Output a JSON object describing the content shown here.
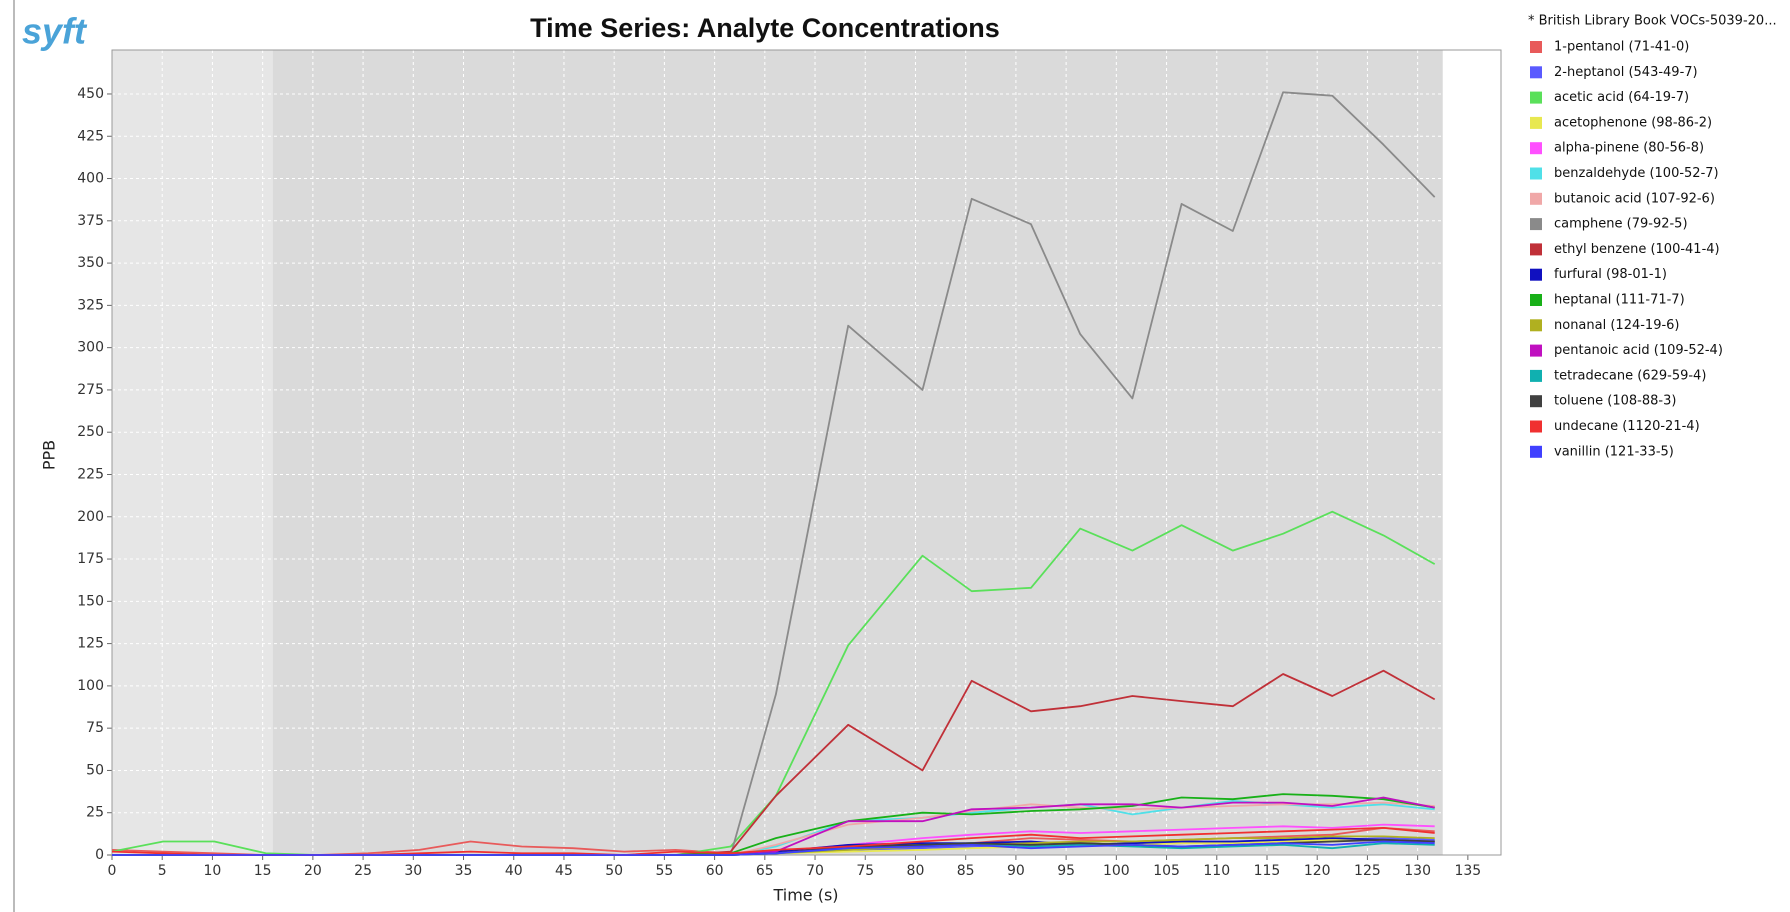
{
  "brand": "syft",
  "chart_data": {
    "type": "line",
    "title": "Time Series: Analyte Concentrations",
    "xlabel": "Time (s)",
    "ylabel": "PPB",
    "legend_title": "* British Library Book VOCs-5039-20...",
    "legend_position": "right",
    "grid": true,
    "xlim": [
      0,
      138.3
    ],
    "ylim": [
      0,
      476
    ],
    "xticks": [
      0,
      5,
      10,
      15,
      20,
      25,
      30,
      35,
      40,
      45,
      50,
      55,
      60,
      65,
      70,
      75,
      80,
      85,
      90,
      95,
      100,
      105,
      110,
      115,
      120,
      125,
      130,
      135
    ],
    "yticks": [
      0,
      25,
      50,
      75,
      100,
      125,
      150,
      175,
      200,
      225,
      250,
      275,
      300,
      325,
      350,
      375,
      400,
      425,
      450
    ],
    "shaded_xranges": [
      {
        "from": 0,
        "to": 16,
        "color": "#e6e6e6"
      },
      {
        "from": 16,
        "to": 132.5,
        "color": "#dadada"
      }
    ],
    "x": [
      0,
      5.1,
      10.2,
      15.3,
      20.4,
      25.5,
      30.6,
      35.7,
      40.8,
      45.9,
      51,
      56.1,
      61.6,
      66.1,
      73.3,
      80.7,
      85.6,
      91.5,
      96.4,
      101.6,
      106.5,
      111.6,
      116.6,
      121.5,
      126.6,
      131.7
    ],
    "series": [
      {
        "name": "1-pentanol (71-41-0)",
        "color": "#e85a5a",
        "values": [
          3,
          2,
          1,
          0,
          0,
          1,
          3,
          8,
          5,
          4,
          2,
          3,
          1,
          2,
          3,
          5,
          7,
          10,
          9,
          8,
          9,
          10,
          11,
          12,
          16,
          14
        ]
      },
      {
        "name": "2-heptanol (543-49-7)",
        "color": "#5a5aff",
        "values": [
          0,
          0,
          0,
          0,
          0,
          0,
          0,
          0,
          0,
          0,
          0,
          0,
          0,
          1,
          3,
          4,
          5,
          6,
          7,
          6,
          7,
          8,
          8,
          9,
          10,
          9
        ]
      },
      {
        "name": "acetic acid (64-19-7)",
        "color": "#5ae05a",
        "values": [
          2,
          8,
          8,
          1,
          0,
          0,
          0,
          0,
          0,
          0,
          0,
          0,
          5,
          35,
          124,
          177,
          156,
          158,
          193,
          180,
          195,
          180,
          190,
          203,
          189,
          172
        ]
      },
      {
        "name": "acetophenone (98-86-2)",
        "color": "#e8e850",
        "values": [
          0,
          0,
          0,
          0,
          0,
          0,
          0,
          0,
          0,
          0,
          0,
          0,
          0,
          1,
          2,
          3,
          4,
          5,
          6,
          6,
          7,
          7,
          8,
          9,
          9,
          8
        ]
      },
      {
        "name": "alpha-pinene (80-56-8)",
        "color": "#ff50ff",
        "values": [
          0,
          0,
          0,
          0,
          0,
          0,
          0,
          0,
          0,
          0,
          0,
          0,
          0,
          2,
          6,
          10,
          12,
          14,
          13,
          14,
          15,
          16,
          17,
          16,
          18,
          17
        ]
      },
      {
        "name": "benzaldehyde (100-52-7)",
        "color": "#50e0e8",
        "values": [
          0,
          0,
          0,
          0,
          0,
          0,
          0,
          0,
          0,
          0,
          0,
          0,
          0,
          5,
          20,
          22,
          25,
          28,
          30,
          24,
          28,
          32,
          30,
          28,
          30,
          27
        ]
      },
      {
        "name": "butanoic acid (107-92-6)",
        "color": "#f0a8a8",
        "values": [
          0,
          0,
          0,
          0,
          0,
          0,
          0,
          0,
          0,
          0,
          0,
          0,
          0,
          6,
          18,
          22,
          26,
          30,
          28,
          27,
          28,
          29,
          30,
          30,
          31,
          29
        ]
      },
      {
        "name": "camphene (79-92-5)",
        "color": "#8a8a8a",
        "values": [
          0,
          0,
          0,
          0,
          0,
          0,
          0,
          0,
          0,
          0,
          0,
          0,
          0,
          95,
          313,
          275,
          388,
          373,
          308,
          270,
          385,
          369,
          451,
          449,
          420,
          389
        ]
      },
      {
        "name": "ethyl benzene (100-41-4)",
        "color": "#c03038",
        "values": [
          0,
          0,
          0,
          0,
          0,
          0,
          0,
          0,
          0,
          0,
          0,
          0,
          2,
          35,
          77,
          50,
          103,
          85,
          88,
          94,
          91,
          88,
          107,
          94,
          109,
          92
        ]
      },
      {
        "name": "furfural (98-01-1)",
        "color": "#1010c0",
        "values": [
          0,
          0,
          0,
          0,
          0,
          0,
          0,
          0,
          0,
          0,
          0,
          0,
          0,
          2,
          6,
          7,
          7,
          8,
          6,
          7,
          8,
          8,
          9,
          10,
          9,
          8
        ]
      },
      {
        "name": "heptanal (111-71-7)",
        "color": "#18b018",
        "values": [
          0,
          0,
          0,
          0,
          0,
          0,
          0,
          0,
          0,
          0,
          0,
          0,
          1,
          10,
          20,
          25,
          24,
          26,
          27,
          29,
          34,
          33,
          36,
          35,
          33,
          28
        ]
      },
      {
        "name": "nonanal (124-19-6)",
        "color": "#b0b020",
        "values": [
          0,
          0,
          0,
          0,
          0,
          0,
          0,
          0,
          0,
          0,
          0,
          0,
          0,
          1,
          3,
          5,
          6,
          7,
          8,
          8,
          9,
          10,
          10,
          11,
          11,
          10
        ]
      },
      {
        "name": "pentanoic acid (109-52-4)",
        "color": "#c010c0",
        "values": [
          0,
          0,
          0,
          0,
          0,
          0,
          0,
          0,
          0,
          0,
          0,
          0,
          0,
          2,
          20,
          20,
          27,
          28,
          30,
          30,
          28,
          31,
          31,
          29,
          34,
          28
        ]
      },
      {
        "name": "tetradecane (629-59-4)",
        "color": "#10b0b0",
        "values": [
          0,
          0,
          0,
          0,
          0,
          0,
          0,
          0,
          0,
          0,
          0,
          0,
          0,
          1,
          4,
          6,
          7,
          5,
          6,
          5,
          4,
          5,
          6,
          4,
          7,
          6
        ]
      },
      {
        "name": "toluene (108-88-3)",
        "color": "#404040",
        "values": [
          0,
          0,
          0,
          0,
          0,
          0,
          0,
          0,
          0,
          0,
          0,
          0,
          0,
          1,
          5,
          6,
          7,
          6,
          7,
          6,
          5,
          6,
          7,
          8,
          9,
          8
        ]
      },
      {
        "name": "undecane (1120-21-4)",
        "color": "#f03030",
        "values": [
          2,
          1,
          0,
          0,
          0,
          0,
          1,
          2,
          1,
          1,
          0,
          2,
          1,
          3,
          5,
          8,
          10,
          12,
          10,
          11,
          12,
          13,
          14,
          15,
          16,
          13
        ]
      },
      {
        "name": "vanillin (121-33-5)",
        "color": "#4040ff",
        "values": [
          0,
          0,
          0,
          0,
          0,
          0,
          0,
          0,
          0,
          0,
          0,
          0,
          0,
          1,
          4,
          5,
          6,
          4,
          5,
          6,
          5,
          6,
          7,
          6,
          8,
          7
        ]
      }
    ]
  }
}
